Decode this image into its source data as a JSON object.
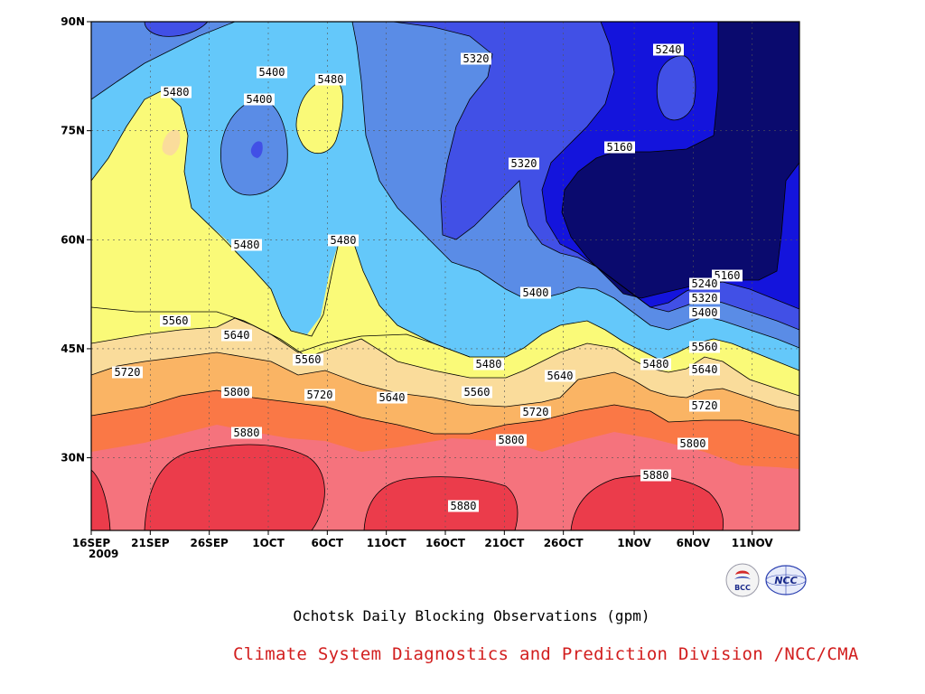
{
  "chart_data": {
    "type": "contour",
    "title": "Ochotsk Daily Blocking Observations (gpm)",
    "x_ticks": [
      "16SEP",
      "21SEP",
      "26SEP",
      "1OCT",
      "6OCT",
      "11OCT",
      "16OCT",
      "21OCT",
      "26OCT",
      "1NOV",
      "6NOV",
      "11NOV"
    ],
    "x_year": "2009",
    "x_range": [
      "2009-09-16",
      "2009-11-15"
    ],
    "y_ticks": [
      "30N",
      "45N",
      "60N",
      "75N",
      "90N"
    ],
    "y_tick_values": [
      30,
      45,
      60,
      75,
      90
    ],
    "y_range": [
      20,
      90
    ],
    "contour_interval": 80,
    "contour_levels": [
      5160,
      5240,
      5320,
      5400,
      5480,
      5560,
      5640,
      5720,
      5800,
      5880
    ],
    "level_colors": {
      "below_5160": "#0a0a6e",
      "5160-5240": "#1414dc",
      "5240-5320": "#4150e6",
      "5320-5400": "#5a8ce6",
      "5400-5480": "#64c8fa",
      "5480-5560": "#fafa78",
      "5560-5640": "#fadc9b",
      "5640-5720": "#fab464",
      "5720-5800": "#fa7846",
      "5800-5880": "#f5737d",
      "above_5880": "#eb3c4b"
    },
    "contour_labels": [
      "5400",
      "5480",
      "5480",
      "5400",
      "5320",
      "5240",
      "5160",
      "5320",
      "5480",
      "5480",
      "5400",
      "5560",
      "5640",
      "5560",
      "5480",
      "5720",
      "5800",
      "5720",
      "5640",
      "5560",
      "5640",
      "5720",
      "5480",
      "5560",
      "5640",
      "5720",
      "5160",
      "5240",
      "5320",
      "5400",
      "5880",
      "5800",
      "5800",
      "5880",
      "5880"
    ],
    "grid": true
  },
  "footer": {
    "credit": "Climate System Diagnostics and Prediction Division /NCC/CMA",
    "logo_bcc_text": "BCC",
    "logo_ncc_text": "NCC"
  },
  "colors": {
    "credit": "#d21e1e"
  }
}
